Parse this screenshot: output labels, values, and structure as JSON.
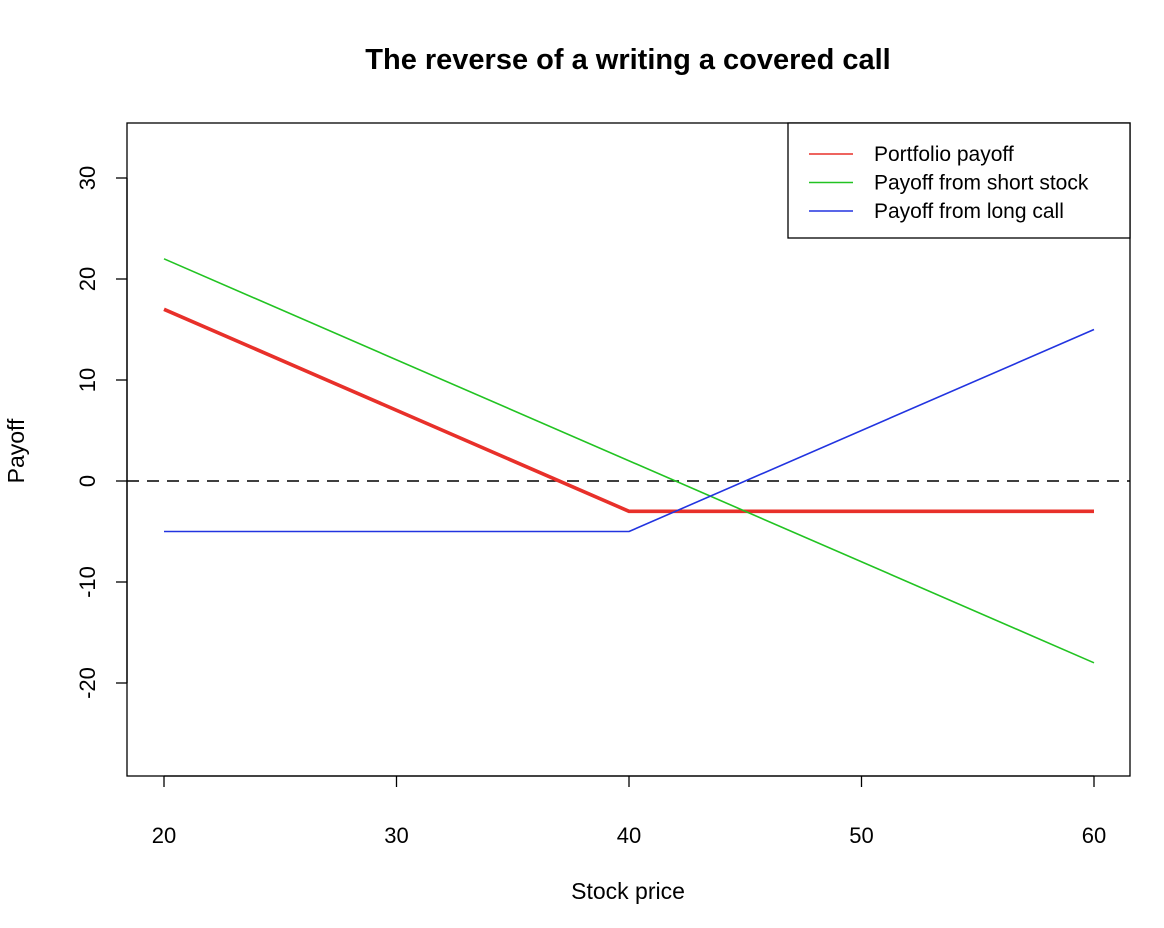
{
  "chart_data": {
    "type": "line",
    "title": "The reverse of a writing a covered call",
    "xlabel": "Stock price",
    "ylabel": "Payoff",
    "xlim": [
      20,
      60
    ],
    "ylim": [
      -29,
      35
    ],
    "xticks": [
      20,
      30,
      40,
      50,
      60
    ],
    "yticks": [
      -20,
      -10,
      0,
      10,
      20,
      30
    ],
    "grid": false,
    "legend_position": "top-right",
    "reference_line": {
      "y": 0,
      "style": "dashed",
      "color": "#000000"
    },
    "series": [
      {
        "name": "Portfolio payoff",
        "color": "#e8302a",
        "width": "bold",
        "x": [
          20,
          40,
          60
        ],
        "y": [
          17,
          -3,
          -3
        ]
      },
      {
        "name": "Payoff from short stock",
        "color": "#22c322",
        "width": "normal",
        "x": [
          20,
          60
        ],
        "y": [
          22,
          -18
        ]
      },
      {
        "name": "Payoff from long call",
        "color": "#2234e0",
        "width": "normal",
        "x": [
          20,
          40,
          60
        ],
        "y": [
          -5,
          -5,
          15
        ]
      }
    ]
  }
}
